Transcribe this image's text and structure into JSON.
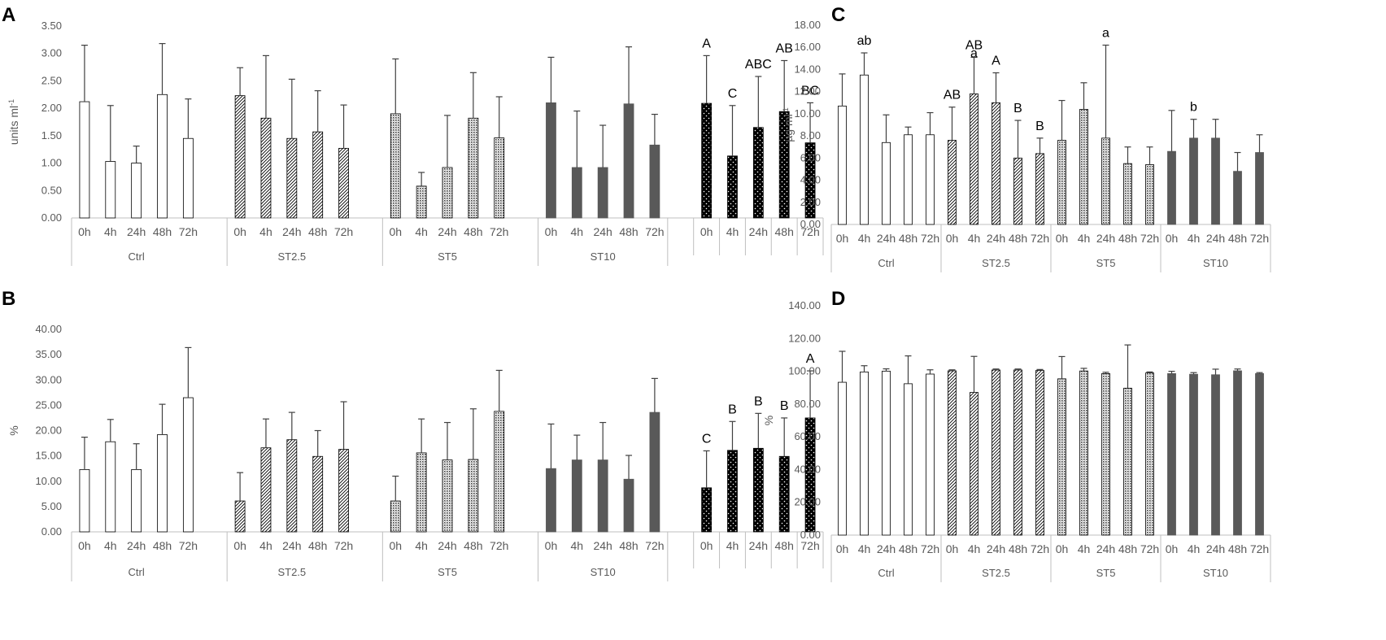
{
  "figure": {
    "panels": [
      "A",
      "B",
      "C",
      "D"
    ]
  },
  "colors": {
    "axis": "#bfbfbf",
    "text": "#595959",
    "bar_dark": "#595959",
    "bar_black": "#000000",
    "error": "#404040"
  },
  "chart_data": [
    {
      "id": "A",
      "type": "bar",
      "ylabel": "units ml",
      "ylabel_sup": "-1",
      "ylim": [
        0,
        3.5
      ],
      "tick_step": 0.5,
      "tick_decimals": 2,
      "groups": [
        {
          "name": "Ctrl",
          "style": "white",
          "categories": [
            "0h",
            "4h",
            "24h",
            "48h",
            "72h"
          ],
          "values": [
            2.12,
            1.03,
            1.0,
            2.25,
            1.45
          ],
          "errors": [
            1.03,
            1.02,
            0.31,
            0.93,
            0.72
          ]
        },
        {
          "name": "ST2.5",
          "style": "diag",
          "categories": [
            "0h",
            "4h",
            "24h",
            "48h",
            "72h"
          ],
          "values": [
            2.23,
            1.82,
            1.45,
            1.57,
            1.27
          ],
          "errors": [
            0.51,
            1.14,
            1.08,
            0.75,
            0.79
          ]
        },
        {
          "name": "ST5",
          "style": "dense",
          "categories": [
            "0h",
            "4h",
            "24h",
            "48h",
            "72h"
          ],
          "values": [
            1.9,
            0.58,
            0.92,
            1.82,
            1.46
          ],
          "errors": [
            1.0,
            0.25,
            0.95,
            0.83,
            0.75
          ]
        },
        {
          "name": "ST10",
          "style": "dark",
          "categories": [
            "0h",
            "4h",
            "24h",
            "48h",
            "72h"
          ],
          "values": [
            2.1,
            0.92,
            0.92,
            2.08,
            1.33
          ],
          "errors": [
            0.83,
            1.03,
            0.77,
            1.04,
            0.56
          ]
        },
        {
          "name": "",
          "style": "dots",
          "boxed_ticks": true,
          "categories": [
            "0h",
            "4h",
            "24h",
            "48h",
            "72h"
          ],
          "values": [
            2.09,
            1.13,
            1.65,
            1.94,
            1.37
          ],
          "errors": [
            0.87,
            0.92,
            0.93,
            0.93,
            0.73
          ],
          "letters": [
            "A",
            "C",
            "ABC",
            "AB",
            "BC"
          ]
        }
      ]
    },
    {
      "id": "B",
      "type": "bar",
      "ylabel": "%",
      "ylim": [
        0,
        40
      ],
      "tick_step": 5,
      "tick_decimals": 2,
      "groups": [
        {
          "name": "Ctrl",
          "style": "white",
          "categories": [
            "0h",
            "4h",
            "24h",
            "48h",
            "72h"
          ],
          "values": [
            12.3,
            17.8,
            12.3,
            19.2,
            26.5
          ],
          "errors": [
            6.4,
            4.4,
            5.1,
            6.0,
            9.9
          ]
        },
        {
          "name": "ST2.5",
          "style": "diag",
          "categories": [
            "0h",
            "4h",
            "24h",
            "48h",
            "72h"
          ],
          "values": [
            6.1,
            16.6,
            18.2,
            14.9,
            16.3
          ],
          "errors": [
            5.6,
            5.7,
            5.4,
            5.1,
            9.4
          ]
        },
        {
          "name": "ST5",
          "style": "dense",
          "categories": [
            "0h",
            "4h",
            "24h",
            "48h",
            "72h"
          ],
          "values": [
            6.1,
            15.6,
            14.2,
            14.3,
            23.8
          ],
          "errors": [
            4.9,
            6.7,
            7.4,
            10.0,
            8.1
          ]
        },
        {
          "name": "ST10",
          "style": "dark",
          "categories": [
            "0h",
            "4h",
            "24h",
            "48h",
            "72h"
          ],
          "values": [
            12.5,
            14.2,
            14.2,
            10.4,
            23.6
          ],
          "errors": [
            8.8,
            4.9,
            7.4,
            4.7,
            6.7
          ]
        },
        {
          "name": "",
          "style": "dots",
          "boxed_ticks": true,
          "categories": [
            "0h",
            "4h",
            "24h",
            "48h",
            "72h"
          ],
          "values": [
            8.7,
            16.1,
            16.5,
            14.9,
            22.5
          ],
          "errors": [
            7.3,
            5.7,
            6.9,
            7.6,
            9.3
          ],
          "letters": [
            "C",
            "B",
            "B",
            "B",
            "A"
          ]
        }
      ]
    },
    {
      "id": "C",
      "type": "bar",
      "ylabel": "µg ml",
      "ylabel_sup": "-1",
      "ylim": [
        0,
        18
      ],
      "tick_step": 2,
      "tick_decimals": 2,
      "groups": [
        {
          "name": "Ctrl",
          "style": "white",
          "categories": [
            "0h",
            "4h",
            "24h",
            "48h",
            "72h"
          ],
          "values": [
            10.7,
            13.5,
            7.4,
            8.1,
            8.1
          ],
          "errors": [
            2.9,
            2.0,
            2.5,
            0.7,
            2.0
          ],
          "letters": [
            "",
            "ab",
            "",
            "",
            ""
          ]
        },
        {
          "name": "ST2.5",
          "style": "diag",
          "categories": [
            "0h",
            "4h",
            "24h",
            "48h",
            "72h"
          ],
          "values": [
            7.6,
            11.8,
            11.0,
            6.0,
            6.4
          ],
          "errors": [
            3.0,
            3.3,
            2.7,
            3.4,
            1.4
          ],
          "letters": [
            "AB",
            "AB\na",
            "A",
            "B",
            "B"
          ]
        },
        {
          "name": "ST5",
          "style": "dense",
          "categories": [
            "0h",
            "4h",
            "24h",
            "48h",
            "72h"
          ],
          "values": [
            7.6,
            10.4,
            7.8,
            5.5,
            5.4
          ],
          "errors": [
            3.6,
            2.4,
            8.4,
            1.5,
            1.6
          ],
          "letters": [
            "",
            "",
            "a",
            "",
            ""
          ]
        },
        {
          "name": "ST10",
          "style": "dark",
          "categories": [
            "0h",
            "4h",
            "24h",
            "48h",
            "72h"
          ],
          "values": [
            6.6,
            7.8,
            7.8,
            4.8,
            6.5
          ],
          "errors": [
            3.7,
            1.7,
            1.7,
            1.7,
            1.6
          ],
          "letters": [
            "",
            "b",
            "",
            "",
            ""
          ]
        }
      ]
    },
    {
      "id": "D",
      "type": "bar",
      "ylabel": "%",
      "ylim": [
        0,
        140
      ],
      "tick_step": 20,
      "tick_decimals": 2,
      "groups": [
        {
          "name": "Ctrl",
          "style": "white",
          "categories": [
            "0h",
            "4h",
            "24h",
            "48h",
            "72h"
          ],
          "values": [
            93.3,
            99.6,
            100.1,
            92.4,
            98.3
          ],
          "errors": [
            18.9,
            3.8,
            1.4,
            17.0,
            2.6
          ]
        },
        {
          "name": "ST2.5",
          "style": "diag",
          "categories": [
            "0h",
            "4h",
            "24h",
            "48h",
            "72h"
          ],
          "values": [
            100.3,
            87.1,
            100.8,
            100.8,
            100.5
          ],
          "errors": [
            0.6,
            22.0,
            0.6,
            0.6,
            0.6
          ]
        },
        {
          "name": "ST5",
          "style": "dense",
          "categories": [
            "0h",
            "4h",
            "24h",
            "48h",
            "72h"
          ],
          "values": [
            95.4,
            100.2,
            98.6,
            89.7,
            99.0
          ],
          "errors": [
            13.6,
            1.6,
            0.8,
            26.4,
            0.6
          ]
        },
        {
          "name": "ST10",
          "style": "dark",
          "categories": [
            "0h",
            "4h",
            "24h",
            "48h",
            "72h"
          ],
          "values": [
            98.6,
            98.2,
            97.9,
            100.3,
            98.6
          ],
          "errors": [
            1.4,
            1.0,
            3.4,
            1.1,
            0.6
          ]
        }
      ]
    }
  ]
}
